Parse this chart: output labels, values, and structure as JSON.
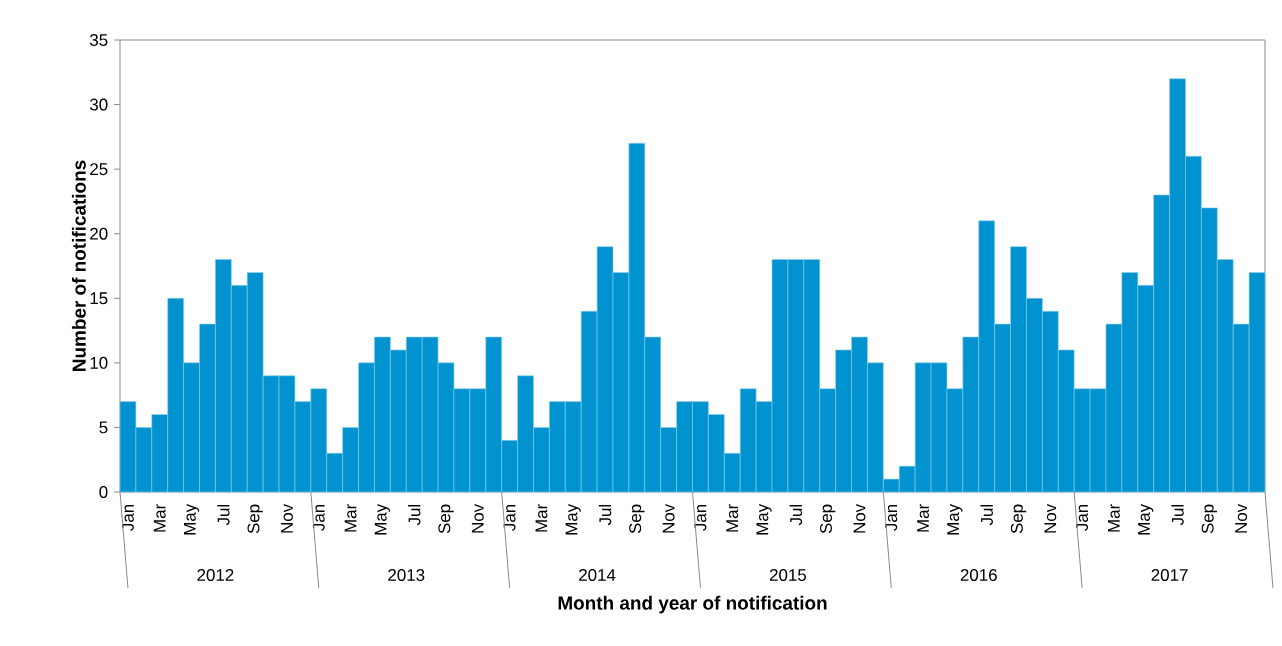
{
  "chart_data": {
    "type": "bar",
    "xlabel": "Month and year of notification",
    "ylabel": "Number of notifications",
    "categories": [
      "Jan",
      null,
      "Mar",
      null,
      "May",
      null,
      "Jul",
      null,
      "Sep",
      null,
      "Nov",
      null,
      "Jan",
      null,
      "Mar",
      null,
      "May",
      null,
      "Jul",
      null,
      "Sep",
      null,
      "Nov",
      null,
      "Jan",
      null,
      "Mar",
      null,
      "May",
      null,
      "Jul",
      null,
      "Sep",
      null,
      "Nov",
      null,
      "Jan",
      null,
      "Mar",
      null,
      "May",
      null,
      "Jul",
      null,
      "Sep",
      null,
      "Nov",
      null,
      "Jan",
      null,
      "Mar",
      null,
      "May",
      null,
      "Jul",
      null,
      "Sep",
      null,
      "Nov",
      null,
      "Jan",
      null,
      "Mar",
      null,
      "May",
      null,
      "Jul",
      null,
      "Sep",
      null,
      "Nov",
      null
    ],
    "values": [
      7,
      5,
      6,
      15,
      10,
      13,
      18,
      16,
      17,
      9,
      9,
      7,
      8,
      3,
      5,
      10,
      12,
      11,
      12,
      12,
      10,
      8,
      8,
      12,
      4,
      9,
      5,
      7,
      7,
      14,
      19,
      17,
      27,
      12,
      5,
      7,
      7,
      6,
      3,
      8,
      7,
      18,
      18,
      18,
      8,
      11,
      12,
      10,
      1,
      2,
      10,
      10,
      8,
      12,
      21,
      13,
      19,
      15,
      14,
      11,
      8,
      8,
      13,
      17,
      16,
      23,
      32,
      26,
      22,
      18,
      13,
      17
    ],
    "color": "#0093cf",
    "ylim": [
      0,
      35
    ],
    "yticks": [
      0,
      5,
      10,
      15,
      20,
      25,
      30,
      35
    ],
    "annotations": [
      "2012",
      "2013",
      "2014",
      "2015",
      "2016",
      "2017"
    ]
  }
}
